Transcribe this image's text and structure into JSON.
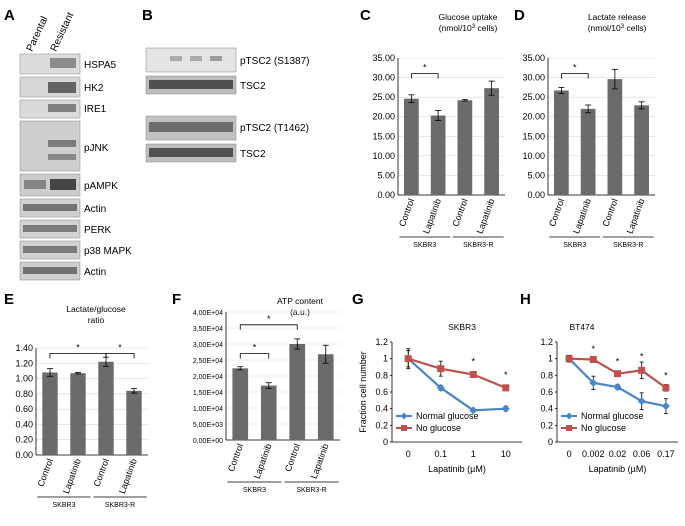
{
  "panel_labels": {
    "A": "A",
    "B": "B",
    "C": "C",
    "D": "D",
    "E": "E",
    "F": "F",
    "G": "G",
    "H": "H"
  },
  "panel_a": {
    "columns": [
      "Parental",
      "Resistant"
    ],
    "bands": [
      "HSPA5",
      "HK2",
      "IRE1",
      "pJNK",
      "pAMPK",
      "Actin",
      "PERK",
      "p38 MAPK",
      "Actin"
    ]
  },
  "panel_b": {
    "bands": [
      "pTSC2 (S1387)",
      "TSC2",
      "pTSC2 (T1462)",
      "TSC2"
    ]
  },
  "chart_data": [
    {
      "panel": "C",
      "type": "bar",
      "title": [
        "Glucose uptake",
        "(nmol/10",
        "3",
        " cells)"
      ],
      "categories": [
        "Control",
        "Lapatinib",
        "Control",
        "Lapatinib"
      ],
      "groups": [
        {
          "label": "SKBR3",
          "span": [
            0,
            1
          ]
        },
        {
          "label": "SKBR3-R",
          "span": [
            2,
            3
          ]
        }
      ],
      "values": [
        24.6,
        20.3,
        24.2,
        27.3
      ],
      "errors": [
        1.0,
        1.3,
        0.2,
        1.8
      ],
      "ylim": [
        0,
        35
      ],
      "yticks": [
        0,
        5,
        10,
        15,
        20,
        25,
        30,
        35
      ],
      "tick_decimals": 2,
      "significance": [
        {
          "from": 0,
          "to": 1,
          "level": 31,
          "mark": "*"
        }
      ]
    },
    {
      "panel": "D",
      "type": "bar",
      "title": [
        "Lactate release",
        "(nmol/10",
        "3",
        " cells)"
      ],
      "categories": [
        "Control",
        "Lapatinib",
        "Control",
        "Lapatinib"
      ],
      "groups": [
        {
          "label": "SKBR3",
          "span": [
            0,
            1
          ]
        },
        {
          "label": "SKBR3-R",
          "span": [
            2,
            3
          ]
        }
      ],
      "values": [
        26.7,
        22.0,
        29.6,
        22.9
      ],
      "errors": [
        0.8,
        1.0,
        2.5,
        0.9
      ],
      "ylim": [
        0,
        35
      ],
      "yticks": [
        0,
        5,
        10,
        15,
        20,
        25,
        30,
        35
      ],
      "tick_decimals": 2,
      "significance": [
        {
          "from": 0,
          "to": 1,
          "level": 31,
          "mark": "*"
        }
      ]
    },
    {
      "panel": "E",
      "type": "bar",
      "title": [
        "Lactate/glucose",
        "ratio"
      ],
      "categories": [
        "Control",
        "Lapatinib",
        "Control",
        "Lapatinib"
      ],
      "groups": [
        {
          "label": "SKBR3",
          "span": [
            0,
            1
          ]
        },
        {
          "label": "SKBR3-R",
          "span": [
            2,
            3
          ]
        }
      ],
      "values": [
        1.08,
        1.07,
        1.22,
        0.84
      ],
      "errors": [
        0.05,
        0.01,
        0.06,
        0.03
      ],
      "ylim": [
        0,
        1.4
      ],
      "yticks": [
        0,
        0.2,
        0.4,
        0.6,
        0.8,
        1.0,
        1.2,
        1.4
      ],
      "tick_decimals": 2,
      "significance": [
        {
          "from": 0,
          "to": 2,
          "level": 1.33,
          "mark": "*"
        },
        {
          "from": 2,
          "to": 3,
          "level": 1.33,
          "mark": "*"
        }
      ]
    },
    {
      "panel": "F",
      "type": "bar",
      "title": [
        "ATP content",
        "(a.u.)"
      ],
      "categories": [
        "Control",
        "Lapatinib",
        "Control",
        "Lapatinib"
      ],
      "groups": [
        {
          "label": "SKBR3",
          "span": [
            0,
            1
          ]
        },
        {
          "label": "SKBR3-R",
          "span": [
            2,
            3
          ]
        }
      ],
      "values": [
        22400,
        17000,
        30000,
        26800
      ],
      "errors": [
        500,
        900,
        1600,
        2800
      ],
      "ylim": [
        0,
        40000
      ],
      "tick_labels": [
        "0,00E+00",
        "5,00E+03",
        "1,00E+04",
        "1,50E+04",
        "2,00E+04",
        "2,50E+04",
        "3,00E+04",
        "3,50E+04",
        "4,00E+04"
      ],
      "significance": [
        {
          "from": 0,
          "to": 1,
          "level": 27000,
          "mark": "*"
        },
        {
          "from": 0,
          "to": 2,
          "level": 36000,
          "mark": "*"
        }
      ]
    },
    {
      "panel": "G",
      "type": "line",
      "title": "SKBR3",
      "xlabel": "Lapatinib (µM)",
      "ylabel": "Fraction cell number",
      "x": [
        "0",
        "0.1",
        "1",
        "10"
      ],
      "ylim": [
        0,
        1.2
      ],
      "yticks": [
        0,
        0.2,
        0.4,
        0.6,
        0.8,
        1.0,
        1.2
      ],
      "tick_labels": [
        "0",
        "0.2",
        "0.4",
        "0.6",
        "0.8",
        "1",
        "1.2"
      ],
      "series": [
        {
          "name": "Normal glucose",
          "color": "#4a86c8",
          "marker": "diamond",
          "values": [
            1.0,
            0.65,
            0.38,
            0.4
          ],
          "errors": [
            0.1,
            0.03,
            0.01,
            0.03
          ]
        },
        {
          "name": "No glucose",
          "color": "#c0504d",
          "marker": "square",
          "values": [
            1.0,
            0.88,
            0.81,
            0.65
          ],
          "errors": [
            0.12,
            0.09,
            0.03,
            0.03
          ]
        }
      ],
      "annotations": [
        {
          "x_index": 2,
          "y": 0.93,
          "text": "*"
        },
        {
          "x_index": 3,
          "y": 0.77,
          "text": "*"
        }
      ],
      "legend": "bottom-left"
    },
    {
      "panel": "H",
      "type": "line",
      "title": "BT474",
      "xlabel": "Lapatinib (µM)",
      "ylabel": "",
      "x": [
        "0",
        "0.002",
        "0.02",
        "0.06",
        "0.17"
      ],
      "ylim": [
        0,
        1.2
      ],
      "yticks": [
        0,
        0.2,
        0.4,
        0.6,
        0.8,
        1.0,
        1.2
      ],
      "tick_labels": [
        "0",
        "0.2",
        "0.4",
        "0.6",
        "0.8",
        "1",
        "1.2"
      ],
      "series": [
        {
          "name": "Normal glucose",
          "color": "#4a86c8",
          "marker": "diamond",
          "values": [
            1.0,
            0.71,
            0.66,
            0.49,
            0.43
          ],
          "errors": [
            0.04,
            0.08,
            0.03,
            0.1,
            0.09
          ]
        },
        {
          "name": "No glucose",
          "color": "#c0504d",
          "marker": "square",
          "values": [
            1.0,
            0.99,
            0.82,
            0.86,
            0.65
          ],
          "errors": [
            0.04,
            0.02,
            0.03,
            0.1,
            0.04
          ]
        }
      ],
      "annotations": [
        {
          "x_index": 1,
          "y": 1.08,
          "text": "*"
        },
        {
          "x_index": 2,
          "y": 0.93,
          "text": "*"
        },
        {
          "x_index": 3,
          "y": 0.99,
          "text": "*"
        },
        {
          "x_index": 4,
          "y": 0.76,
          "text": "*"
        }
      ],
      "legend": "bottom-left"
    }
  ]
}
